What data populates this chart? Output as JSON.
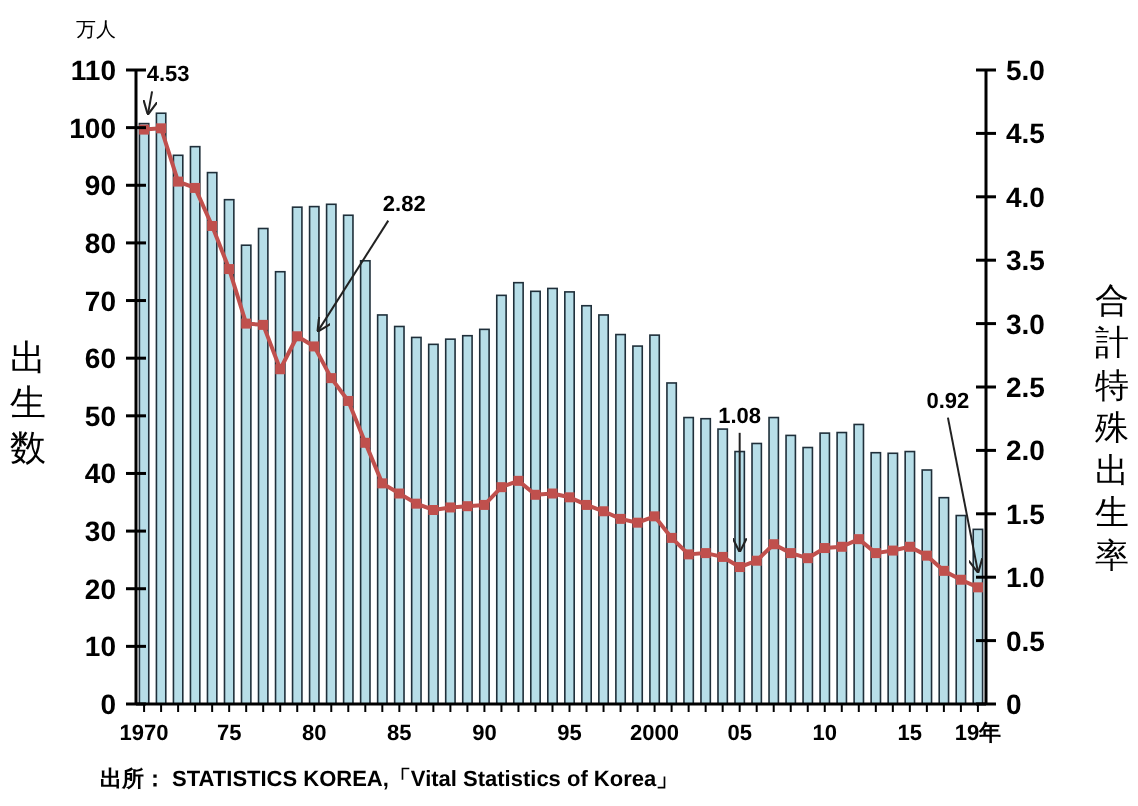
{
  "chart_data": {
    "type": "bar",
    "ylabel": "出生数",
    "y2label": "合計特殊出生率",
    "categories": [
      "1970",
      null,
      null,
      null,
      null,
      "75",
      null,
      null,
      null,
      null,
      "80",
      null,
      null,
      null,
      null,
      "85",
      null,
      null,
      null,
      null,
      "90",
      null,
      null,
      null,
      null,
      "95",
      null,
      null,
      null,
      null,
      "2000",
      null,
      null,
      null,
      null,
      "05",
      null,
      null,
      null,
      null,
      "10",
      null,
      null,
      null,
      null,
      "15",
      null,
      null,
      null,
      "19年"
    ],
    "series": [
      {
        "color": "#b7dee8",
        "values": [
          100.7,
          102.5,
          95.2,
          96.7,
          92.2,
          87.5,
          79.6,
          82.5,
          75.0,
          86.2,
          86.3,
          86.7,
          84.8,
          76.9,
          67.5,
          65.5,
          63.6,
          62.4,
          63.3,
          63.9,
          65.0,
          70.9,
          73.1,
          71.6,
          72.1,
          71.5,
          69.1,
          67.5,
          64.1,
          62.1,
          64.0,
          55.7,
          49.7,
          49.5,
          47.7,
          43.8,
          45.2,
          49.7,
          46.6,
          44.5,
          47.0,
          47.1,
          48.5,
          43.6,
          43.5,
          43.8,
          40.6,
          35.8,
          32.7,
          30.3
        ]
      },
      {
        "type": "line",
        "axis": "y2",
        "color": "#c0504d",
        "values": [
          4.53,
          4.54,
          4.12,
          4.07,
          3.77,
          3.43,
          3.0,
          2.99,
          2.64,
          2.9,
          2.82,
          2.57,
          2.39,
          2.06,
          1.74,
          1.66,
          1.58,
          1.53,
          1.55,
          1.56,
          1.57,
          1.71,
          1.76,
          1.65,
          1.66,
          1.63,
          1.57,
          1.52,
          1.46,
          1.43,
          1.48,
          1.31,
          1.18,
          1.19,
          1.16,
          1.08,
          1.13,
          1.26,
          1.19,
          1.15,
          1.23,
          1.24,
          1.3,
          1.19,
          1.21,
          1.24,
          1.17,
          1.05,
          0.98,
          0.92
        ]
      }
    ],
    "ylim": [
      0,
      110
    ],
    "yticks": [
      0,
      10,
      20,
      30,
      40,
      50,
      60,
      70,
      80,
      90,
      100,
      110
    ],
    "y2lim": [
      0,
      5
    ],
    "y2ticks": [
      0,
      {
        "value": 0.5,
        "label": "0.5"
      },
      {
        "value": 1,
        "label": "1.0"
      },
      {
        "value": 1.5,
        "label": "1.5"
      },
      {
        "value": 2,
        "label": "2.0"
      },
      {
        "value": 2.5,
        "label": "2.5"
      },
      {
        "value": 3,
        "label": "3.0"
      },
      {
        "value": 3.5,
        "label": "3.5"
      },
      {
        "value": 4,
        "label": "4.0"
      },
      {
        "value": 4.5,
        "label": "4.5"
      },
      {
        "value": 5,
        "label": "5.0"
      }
    ],
    "marker": "square",
    "line_style": "solid",
    "grid": false,
    "annotations": [
      "万人",
      {
        "text": "4.53",
        "x": "1970",
        "y": 99.7
      },
      {
        "text": "2.82",
        "x": "80",
        "y": 62.0
      },
      {
        "text": "1.08",
        "x": "05",
        "y": 23.8
      },
      {
        "text": "0.92",
        "x": "19年",
        "y": 20.2
      },
      "出所： STATISTICS KOREA,「Vital Statistics of Korea」"
    ]
  }
}
